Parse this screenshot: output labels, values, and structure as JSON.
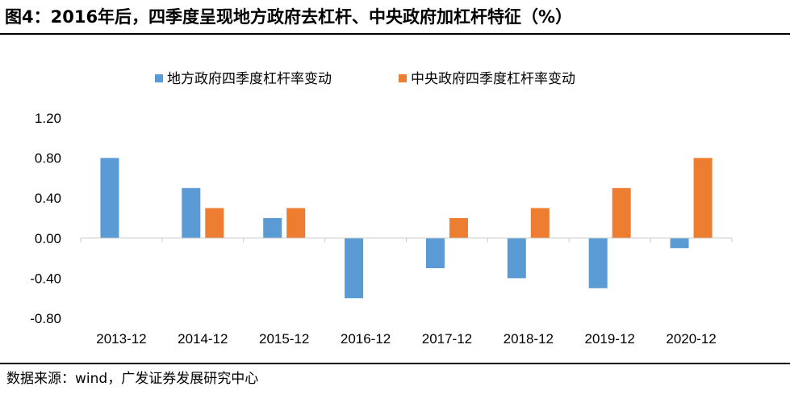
{
  "header": {
    "title": "图4：2016年后，四季度呈现地方政府去杠杆、中央政府加杠杆特征（%）"
  },
  "footer": {
    "source": "数据来源：wind，广发证券发展研究中心"
  },
  "chart_data": {
    "type": "bar",
    "title": "",
    "xlabel": "",
    "ylabel": "",
    "categories": [
      "2013-12",
      "2014-12",
      "2015-12",
      "2016-12",
      "2017-12",
      "2018-12",
      "2019-12",
      "2020-12"
    ],
    "series": [
      {
        "name": "地方政府四季度杠杆率变动",
        "color": "#5B9BD5",
        "values": [
          0.8,
          0.5,
          0.2,
          -0.6,
          -0.3,
          -0.4,
          -0.5,
          -0.1
        ]
      },
      {
        "name": "中央政府四季度杠杆率变动",
        "color": "#ED7D31",
        "values": [
          0.0,
          0.3,
          0.3,
          0.0,
          0.2,
          0.3,
          0.5,
          0.8
        ]
      }
    ],
    "ylim": [
      -0.8,
      1.2
    ],
    "yticks": [
      "1.20",
      "0.80",
      "0.40",
      "0.00",
      "-0.40",
      "-0.80"
    ],
    "grid": false,
    "legend_position": "top"
  }
}
